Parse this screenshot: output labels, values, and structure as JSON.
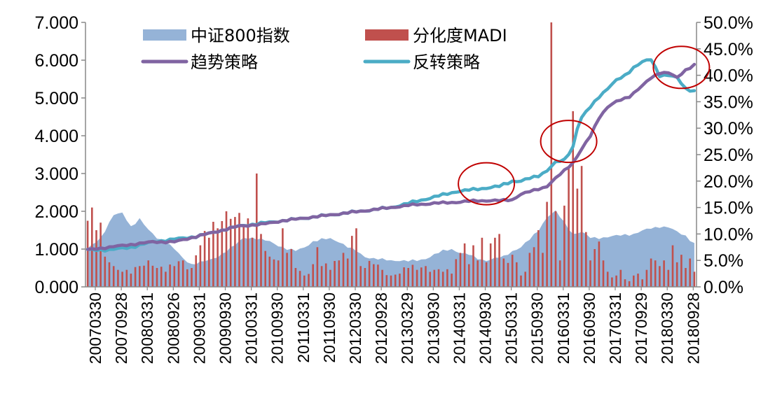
{
  "chart_data": {
    "type": "combo",
    "title": "",
    "legend_position": "top",
    "y_left": {
      "min": 0,
      "max": 7,
      "ticks": [
        "0.000",
        "1.000",
        "2.000",
        "3.000",
        "4.000",
        "5.000",
        "6.000",
        "7.000"
      ]
    },
    "y_right": {
      "min": 0,
      "max": 0.5,
      "ticks": [
        "0.0%",
        "5.0%",
        "10.0%",
        "15.0%",
        "20.0%",
        "25.0%",
        "30.0%",
        "35.0%",
        "40.0%",
        "45.0%",
        "50.0%"
      ]
    },
    "x_ticks": [
      "20070330",
      "20070928",
      "20080331",
      "20080926",
      "20090331",
      "20090930",
      "20100331",
      "20100930",
      "20110331",
      "20110930",
      "20120330",
      "20120928",
      "20130329",
      "20130930",
      "20140331",
      "20140930",
      "20150331",
      "20150930",
      "20160331",
      "20160930",
      "20170331",
      "20170929",
      "20180330",
      "20180928"
    ],
    "n_points": 141,
    "series": [
      {
        "name": "中证800指数",
        "type": "area",
        "axis": "left",
        "color": "#95B3D7",
        "anchors": [
          [
            0,
            1.0
          ],
          [
            3,
            1.3
          ],
          [
            6,
            1.9
          ],
          [
            8,
            1.95
          ],
          [
            10,
            1.6
          ],
          [
            12,
            1.8
          ],
          [
            14,
            1.5
          ],
          [
            16,
            1.3
          ],
          [
            18,
            1.2
          ],
          [
            20,
            1.0
          ],
          [
            22,
            0.75
          ],
          [
            24,
            0.6
          ],
          [
            26,
            0.65
          ],
          [
            28,
            0.7
          ],
          [
            30,
            0.8
          ],
          [
            34,
            1.1
          ],
          [
            36,
            1.3
          ],
          [
            38,
            1.3
          ],
          [
            40,
            1.25
          ],
          [
            42,
            1.2
          ],
          [
            44,
            1.1
          ],
          [
            46,
            1.0
          ],
          [
            48,
            0.95
          ],
          [
            50,
            1.05
          ],
          [
            52,
            1.2
          ],
          [
            54,
            1.25
          ],
          [
            56,
            1.28
          ],
          [
            58,
            1.2
          ],
          [
            60,
            1.05
          ],
          [
            62,
            0.95
          ],
          [
            64,
            0.8
          ],
          [
            66,
            0.75
          ],
          [
            68,
            0.72
          ],
          [
            70,
            0.7
          ],
          [
            72,
            0.7
          ],
          [
            74,
            0.68
          ],
          [
            76,
            0.7
          ],
          [
            78,
            0.75
          ],
          [
            80,
            0.85
          ],
          [
            82,
            0.95
          ],
          [
            84,
            1.0
          ],
          [
            86,
            0.9
          ],
          [
            88,
            0.85
          ],
          [
            90,
            0.75
          ],
          [
            92,
            0.7
          ],
          [
            94,
            0.75
          ],
          [
            96,
            0.8
          ],
          [
            98,
            0.95
          ],
          [
            100,
            1.05
          ],
          [
            102,
            1.25
          ],
          [
            104,
            1.5
          ],
          [
            106,
            1.85
          ],
          [
            108,
            2.0
          ],
          [
            110,
            1.7
          ],
          [
            112,
            1.4
          ],
          [
            114,
            1.45
          ],
          [
            116,
            1.3
          ],
          [
            118,
            1.3
          ],
          [
            120,
            1.32
          ],
          [
            122,
            1.35
          ],
          [
            124,
            1.38
          ],
          [
            126,
            1.4
          ],
          [
            128,
            1.48
          ],
          [
            130,
            1.55
          ],
          [
            132,
            1.6
          ],
          [
            134,
            1.58
          ],
          [
            136,
            1.45
          ],
          [
            138,
            1.35
          ],
          [
            140,
            1.15
          ]
        ]
      },
      {
        "name": "分化度MADI",
        "type": "bar",
        "axis": "left",
        "color": "#C0504D",
        "anchors": [
          [
            0,
            1.75
          ],
          [
            1,
            2.1
          ],
          [
            2,
            1.5
          ],
          [
            3,
            1.7
          ],
          [
            4,
            0.8
          ],
          [
            5,
            0.65
          ],
          [
            6,
            0.55
          ],
          [
            7,
            0.45
          ],
          [
            8,
            0.4
          ],
          [
            9,
            0.45
          ],
          [
            10,
            0.35
          ],
          [
            12,
            0.55
          ],
          [
            14,
            0.7
          ],
          [
            16,
            0.5
          ],
          [
            18,
            0.4
          ],
          [
            20,
            0.55
          ],
          [
            22,
            0.7
          ],
          [
            24,
            0.5
          ],
          [
            26,
            1.1
          ],
          [
            28,
            1.3
          ],
          [
            30,
            1.55
          ],
          [
            32,
            2.0
          ],
          [
            33,
            1.8
          ],
          [
            34,
            1.85
          ],
          [
            36,
            1.6
          ],
          [
            38,
            1.3
          ],
          [
            39,
            3.0
          ],
          [
            40,
            1.4
          ],
          [
            42,
            0.8
          ],
          [
            44,
            0.7
          ],
          [
            45,
            1.55
          ],
          [
            46,
            0.9
          ],
          [
            47,
            1.0
          ],
          [
            48,
            0.5
          ],
          [
            50,
            0.3
          ],
          [
            52,
            0.6
          ],
          [
            53,
            1.05
          ],
          [
            54,
            0.55
          ],
          [
            56,
            0.45
          ],
          [
            58,
            0.7
          ],
          [
            59,
            0.9
          ],
          [
            60,
            0.75
          ],
          [
            61,
            1.35
          ],
          [
            62,
            1.55
          ],
          [
            63,
            0.55
          ],
          [
            64,
            0.5
          ],
          [
            66,
            0.6
          ],
          [
            68,
            0.45
          ],
          [
            70,
            0.3
          ],
          [
            72,
            0.35
          ],
          [
            74,
            0.5
          ],
          [
            76,
            0.45
          ],
          [
            78,
            0.55
          ],
          [
            80,
            0.45
          ],
          [
            82,
            0.4
          ],
          [
            84,
            0.35
          ],
          [
            86,
            0.9
          ],
          [
            87,
            1.15
          ],
          [
            88,
            0.6
          ],
          [
            89,
            1.1
          ],
          [
            90,
            0.7
          ],
          [
            91,
            1.3
          ],
          [
            92,
            0.65
          ],
          [
            93,
            1.15
          ],
          [
            94,
            1.3
          ],
          [
            95,
            1.4
          ],
          [
            96,
            0.75
          ],
          [
            98,
            0.85
          ],
          [
            99,
            0.65
          ],
          [
            100,
            0.3
          ],
          [
            101,
            0.4
          ],
          [
            102,
            0.9
          ],
          [
            103,
            1.05
          ],
          [
            104,
            1.5
          ],
          [
            105,
            0.9
          ],
          [
            106,
            2.25
          ],
          [
            107,
            7.0
          ],
          [
            108,
            2.0
          ],
          [
            109,
            0.7
          ],
          [
            110,
            2.15
          ],
          [
            111,
            3.15
          ],
          [
            112,
            4.65
          ],
          [
            113,
            2.6
          ],
          [
            114,
            3.2
          ],
          [
            115,
            1.45
          ],
          [
            116,
            0.7
          ],
          [
            117,
            1.0
          ],
          [
            118,
            1.2
          ],
          [
            119,
            0.7
          ],
          [
            120,
            0.4
          ],
          [
            121,
            0.25
          ],
          [
            122,
            0.3
          ],
          [
            123,
            0.45
          ],
          [
            124,
            0.2
          ],
          [
            125,
            0.15
          ],
          [
            126,
            0.3
          ],
          [
            127,
            0.35
          ],
          [
            128,
            0.2
          ],
          [
            129,
            0.45
          ],
          [
            130,
            0.75
          ],
          [
            131,
            0.7
          ],
          [
            132,
            0.55
          ],
          [
            133,
            0.7
          ],
          [
            134,
            0.45
          ],
          [
            135,
            1.1
          ],
          [
            136,
            0.65
          ],
          [
            137,
            0.85
          ],
          [
            138,
            0.5
          ],
          [
            139,
            0.75
          ],
          [
            140,
            0.4
          ]
        ]
      },
      {
        "name": "趋势策略",
        "type": "line",
        "axis": "right",
        "color": "#8064A2",
        "anchors": [
          [
            0,
            0.07
          ],
          [
            5,
            0.075
          ],
          [
            10,
            0.08
          ],
          [
            15,
            0.085
          ],
          [
            20,
            0.085
          ],
          [
            25,
            0.095
          ],
          [
            30,
            0.105
          ],
          [
            35,
            0.115
          ],
          [
            40,
            0.118
          ],
          [
            45,
            0.125
          ],
          [
            50,
            0.13
          ],
          [
            55,
            0.135
          ],
          [
            60,
            0.14
          ],
          [
            65,
            0.145
          ],
          [
            70,
            0.15
          ],
          [
            75,
            0.155
          ],
          [
            80,
            0.158
          ],
          [
            85,
            0.16
          ],
          [
            90,
            0.163
          ],
          [
            95,
            0.163
          ],
          [
            98,
            0.165
          ],
          [
            100,
            0.175
          ],
          [
            102,
            0.18
          ],
          [
            104,
            0.185
          ],
          [
            106,
            0.19
          ],
          [
            108,
            0.205
          ],
          [
            110,
            0.22
          ],
          [
            112,
            0.235
          ],
          [
            114,
            0.26
          ],
          [
            116,
            0.285
          ],
          [
            118,
            0.32
          ],
          [
            120,
            0.34
          ],
          [
            122,
            0.35
          ],
          [
            125,
            0.36
          ],
          [
            128,
            0.38
          ],
          [
            130,
            0.395
          ],
          [
            132,
            0.405
          ],
          [
            134,
            0.405
          ],
          [
            136,
            0.395
          ],
          [
            138,
            0.41
          ],
          [
            140,
            0.42
          ]
        ]
      },
      {
        "name": "反转策略",
        "type": "line",
        "axis": "right",
        "color": "#4BACC6",
        "anchors": [
          [
            0,
            0.07
          ],
          [
            5,
            0.07
          ],
          [
            10,
            0.075
          ],
          [
            15,
            0.085
          ],
          [
            20,
            0.09
          ],
          [
            25,
            0.095
          ],
          [
            30,
            0.105
          ],
          [
            35,
            0.115
          ],
          [
            40,
            0.12
          ],
          [
            45,
            0.125
          ],
          [
            50,
            0.13
          ],
          [
            55,
            0.135
          ],
          [
            60,
            0.14
          ],
          [
            65,
            0.145
          ],
          [
            70,
            0.15
          ],
          [
            75,
            0.16
          ],
          [
            80,
            0.17
          ],
          [
            85,
            0.18
          ],
          [
            90,
            0.185
          ],
          [
            95,
            0.19
          ],
          [
            98,
            0.2
          ],
          [
            100,
            0.2
          ],
          [
            104,
            0.21
          ],
          [
            106,
            0.22
          ],
          [
            108,
            0.235
          ],
          [
            110,
            0.24
          ],
          [
            112,
            0.265
          ],
          [
            113,
            0.3
          ],
          [
            114,
            0.32
          ],
          [
            116,
            0.34
          ],
          [
            118,
            0.36
          ],
          [
            120,
            0.375
          ],
          [
            122,
            0.39
          ],
          [
            124,
            0.4
          ],
          [
            126,
            0.415
          ],
          [
            128,
            0.425
          ],
          [
            130,
            0.43
          ],
          [
            132,
            0.4
          ],
          [
            134,
            0.4
          ],
          [
            136,
            0.395
          ],
          [
            138,
            0.375
          ],
          [
            140,
            0.37
          ]
        ]
      }
    ],
    "annotations": [
      {
        "shape": "ellipse",
        "color": "#C00000",
        "x_index": 92,
        "y_value_right": 0.195
      },
      {
        "shape": "ellipse",
        "color": "#C00000",
        "x_index": 111,
        "y_value_right": 0.275
      },
      {
        "shape": "ellipse",
        "color": "#C00000",
        "x_index": 137,
        "y_value_right": 0.415
      }
    ]
  }
}
